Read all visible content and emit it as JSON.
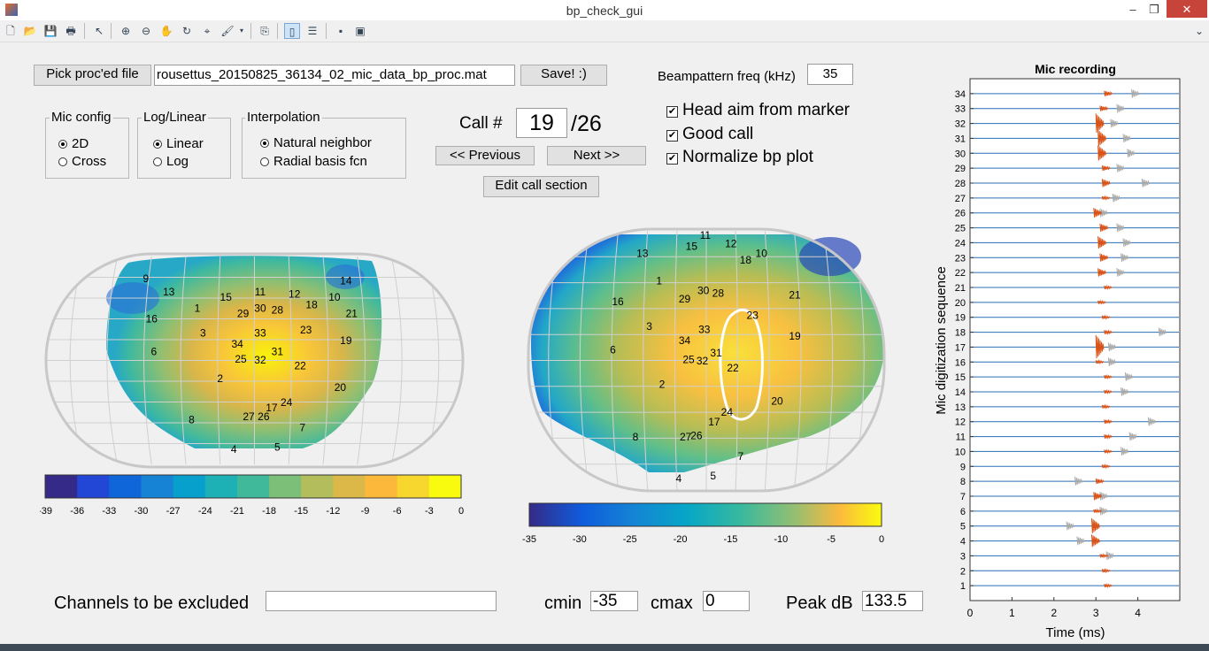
{
  "window": {
    "title": "bp_check_gui",
    "minimize": "–",
    "restore": "❐",
    "close": "✕"
  },
  "toolbar": {
    "icons": [
      "new-icon",
      "open-icon",
      "save-icon",
      "print-icon",
      "pointer-icon",
      "zoom-in-icon",
      "zoom-out-icon",
      "pan-icon",
      "rotate-icon",
      "data-cursor-icon",
      "brush-icon",
      "dropdown-icon",
      "link-plot-icon",
      "colorbar-icon",
      "legend-icon",
      "hide-plot-tools-icon",
      "show-plot-tools-icon"
    ],
    "overflow": "⌄"
  },
  "file": {
    "pick_label": "Pick proc'ed file",
    "filename": "rousettus_20150825_36134_02_mic_data_bp_proc.mat",
    "save_label": "Save!  :)"
  },
  "bp_freq": {
    "label": "Beampattern freq (kHz)",
    "value": "35"
  },
  "mic_config": {
    "title": "Mic config",
    "options": [
      "2D",
      "Cross"
    ],
    "selected": "2D"
  },
  "log_linear": {
    "title": "Log/Linear",
    "options": [
      "Linear",
      "Log"
    ],
    "selected": "Linear"
  },
  "interp": {
    "title": "Interpolation",
    "options": [
      "Natural neighbor",
      "Radial basis fcn"
    ],
    "selected": "Natural neighbor"
  },
  "call": {
    "label": "Call #",
    "value": "19",
    "total": "/26",
    "prev_label": "<< Previous",
    "next_label": "Next >>",
    "edit_label": "Edit call section"
  },
  "checks": [
    {
      "label": "Head aim from marker",
      "checked": true
    },
    {
      "label": "Good call",
      "checked": true
    },
    {
      "label": "Normalize bp plot",
      "checked": true
    }
  ],
  "left_map": {
    "mics": [
      {
        "id": "9",
        "lon": -95,
        "lat": 72
      },
      {
        "id": "13",
        "lon": -75,
        "lat": 60
      },
      {
        "id": "15",
        "lon": -25,
        "lat": 55
      },
      {
        "id": "11",
        "lon": 5,
        "lat": 60
      },
      {
        "id": "12",
        "lon": 35,
        "lat": 58
      },
      {
        "id": "14",
        "lon": 80,
        "lat": 70
      },
      {
        "id": "10",
        "lon": 70,
        "lat": 55
      },
      {
        "id": "18",
        "lon": 50,
        "lat": 48
      },
      {
        "id": "21",
        "lon": 85,
        "lat": 40
      },
      {
        "id": "16",
        "lon": -90,
        "lat": 35
      },
      {
        "id": "1",
        "lon": -50,
        "lat": 45
      },
      {
        "id": "29",
        "lon": -10,
        "lat": 40
      },
      {
        "id": "30",
        "lon": 5,
        "lat": 45
      },
      {
        "id": "28",
        "lon": 20,
        "lat": 43
      },
      {
        "id": "3",
        "lon": -45,
        "lat": 22
      },
      {
        "id": "33",
        "lon": 5,
        "lat": 22
      },
      {
        "id": "23",
        "lon": 45,
        "lat": 25
      },
      {
        "id": "19",
        "lon": 80,
        "lat": 15
      },
      {
        "id": "6",
        "lon": -88,
        "lat": 5
      },
      {
        "id": "34",
        "lon": -15,
        "lat": 12
      },
      {
        "id": "31",
        "lon": 20,
        "lat": 5
      },
      {
        "id": "25",
        "lon": -12,
        "lat": -2
      },
      {
        "id": "32",
        "lon": 5,
        "lat": -3
      },
      {
        "id": "22",
        "lon": 40,
        "lat": -8
      },
      {
        "id": "2",
        "lon": -30,
        "lat": -20
      },
      {
        "id": "20",
        "lon": 75,
        "lat": -28
      },
      {
        "id": "24",
        "lon": 28,
        "lat": -42
      },
      {
        "id": "17",
        "lon": 15,
        "lat": -47
      },
      {
        "id": "27",
        "lon": -5,
        "lat": -55
      },
      {
        "id": "26",
        "lon": 8,
        "lat": -55
      },
      {
        "id": "8",
        "lon": -55,
        "lat": -58
      },
      {
        "id": "7",
        "lon": 42,
        "lat": -65
      },
      {
        "id": "4",
        "lon": -18,
        "lat": -85
      },
      {
        "id": "5",
        "lon": 20,
        "lat": -83
      }
    ],
    "colorbar_ticks": [
      "-39",
      "-36",
      "-33",
      "-30",
      "-27",
      "-24",
      "-21",
      "-18",
      "-15",
      "-12",
      "-9",
      "-6",
      "-3",
      "0"
    ]
  },
  "right_map": {
    "mics": [
      {
        "id": "13",
        "lon": -65,
        "lat": 75
      },
      {
        "id": "15",
        "lon": -15,
        "lat": 80
      },
      {
        "id": "11",
        "lon": -1,
        "lat": 88
      },
      {
        "id": "12",
        "lon": 25,
        "lat": 82
      },
      {
        "id": "18",
        "lon": 40,
        "lat": 70
      },
      {
        "id": "10",
        "lon": 56,
        "lat": 75
      },
      {
        "id": "21",
        "lon": 90,
        "lat": 45
      },
      {
        "id": "16",
        "lon": -90,
        "lat": 40
      },
      {
        "id": "1",
        "lon": -48,
        "lat": 55
      },
      {
        "id": "29",
        "lon": -22,
        "lat": 42
      },
      {
        "id": "30",
        "lon": -3,
        "lat": 48
      },
      {
        "id": "28",
        "lon": 12,
        "lat": 46
      },
      {
        "id": "23",
        "lon": 47,
        "lat": 30
      },
      {
        "id": "3",
        "lon": -58,
        "lat": 22
      },
      {
        "id": "33",
        "lon": -2,
        "lat": 20
      },
      {
        "id": "34",
        "lon": -22,
        "lat": 12
      },
      {
        "id": "19",
        "lon": 90,
        "lat": 15
      },
      {
        "id": "6",
        "lon": -95,
        "lat": 5
      },
      {
        "id": "31",
        "lon": 10,
        "lat": 3
      },
      {
        "id": "25",
        "lon": -18,
        "lat": -2
      },
      {
        "id": "32",
        "lon": -4,
        "lat": -3
      },
      {
        "id": "22",
        "lon": 27,
        "lat": -8
      },
      {
        "id": "2",
        "lon": -45,
        "lat": -20
      },
      {
        "id": "20",
        "lon": 72,
        "lat": -32
      },
      {
        "id": "24",
        "lon": 21,
        "lat": -40
      },
      {
        "id": "17",
        "lon": 8,
        "lat": -47
      },
      {
        "id": "27",
        "lon": -21,
        "lat": -58
      },
      {
        "id": "26",
        "lon": -10,
        "lat": -57
      },
      {
        "id": "8",
        "lon": -72,
        "lat": -58
      },
      {
        "id": "7",
        "lon": 35,
        "lat": -72
      },
      {
        "id": "4",
        "lon": -28,
        "lat": -88
      },
      {
        "id": "5",
        "lon": 7,
        "lat": -86
      }
    ],
    "colorbar_ticks": [
      "-35",
      "-30",
      "-25",
      "-20",
      "-15",
      "-10",
      "-5",
      "0"
    ]
  },
  "footer": {
    "excluded_label": "Channels to be excluded",
    "excluded_value": "",
    "cmin_label": "cmin",
    "cmin_value": "-35",
    "cmax_label": "cmax",
    "cmax_value": "0",
    "peak_label": "Peak dB",
    "peak_value": "133.5"
  },
  "chart_data": {
    "type": "line",
    "title": "Mic recording",
    "xlabel": "Time (ms)",
    "ylabel": "Mic digitization sequence",
    "xlim": [
      0,
      5
    ],
    "xticks": [
      "0",
      "1",
      "2",
      "3",
      "4"
    ],
    "ylim": [
      0,
      35
    ],
    "yticks": [
      "1",
      "2",
      "3",
      "4",
      "5",
      "6",
      "7",
      "8",
      "9",
      "10",
      "11",
      "12",
      "13",
      "14",
      "15",
      "16",
      "17",
      "18",
      "19",
      "20",
      "21",
      "22",
      "23",
      "24",
      "25",
      "26",
      "27",
      "28",
      "29",
      "30",
      "31",
      "32",
      "33",
      "34"
    ],
    "series": [
      {
        "mic": 1,
        "call_t": 3.2,
        "call_amp": 0.05,
        "echo_t": null
      },
      {
        "mic": 2,
        "call_t": 3.15,
        "call_amp": 0.05,
        "echo_t": null
      },
      {
        "mic": 3,
        "call_t": 3.1,
        "call_amp": 0.1,
        "echo_t": 3.25
      },
      {
        "mic": 4,
        "call_t": 2.9,
        "call_amp": 0.45,
        "echo_t": 2.55
      },
      {
        "mic": 5,
        "call_t": 2.9,
        "call_amp": 0.55,
        "echo_t": 2.3
      },
      {
        "mic": 6,
        "call_t": 2.95,
        "call_amp": 0.1,
        "echo_t": 3.1
      },
      {
        "mic": 7,
        "call_t": 2.95,
        "call_amp": 0.3,
        "echo_t": 3.1
      },
      {
        "mic": 8,
        "call_t": 3.0,
        "call_amp": 0.2,
        "echo_t": 2.5
      },
      {
        "mic": 9,
        "call_t": 3.15,
        "call_amp": 0.05,
        "echo_t": null
      },
      {
        "mic": 10,
        "call_t": 3.2,
        "call_amp": 0.1,
        "echo_t": 3.6
      },
      {
        "mic": 11,
        "call_t": 3.2,
        "call_amp": 0.15,
        "echo_t": 3.8
      },
      {
        "mic": 12,
        "call_t": 3.2,
        "call_amp": 0.15,
        "echo_t": 4.25
      },
      {
        "mic": 13,
        "call_t": 3.15,
        "call_amp": 0.1,
        "echo_t": null
      },
      {
        "mic": 14,
        "call_t": 3.2,
        "call_amp": 0.1,
        "echo_t": 3.6
      },
      {
        "mic": 15,
        "call_t": 3.2,
        "call_amp": 0.1,
        "echo_t": 3.7
      },
      {
        "mic": 16,
        "call_t": 3.0,
        "call_amp": 0.1,
        "echo_t": 3.3
      },
      {
        "mic": 17,
        "call_t": 3.0,
        "call_amp": 0.85,
        "echo_t": 3.3
      },
      {
        "mic": 18,
        "call_t": 3.2,
        "call_amp": 0.15,
        "echo_t": 4.5
      },
      {
        "mic": 19,
        "call_t": 3.15,
        "call_amp": 0.1,
        "echo_t": null
      },
      {
        "mic": 20,
        "call_t": 3.05,
        "call_amp": 0.1,
        "echo_t": null
      },
      {
        "mic": 21,
        "call_t": 3.2,
        "call_amp": 0.1,
        "echo_t": null
      },
      {
        "mic": 22,
        "call_t": 3.05,
        "call_amp": 0.3,
        "echo_t": 3.5
      },
      {
        "mic": 23,
        "call_t": 3.1,
        "call_amp": 0.3,
        "echo_t": 3.6
      },
      {
        "mic": 24,
        "call_t": 3.05,
        "call_amp": 0.45,
        "echo_t": 3.65
      },
      {
        "mic": 25,
        "call_t": 3.1,
        "call_amp": 0.3,
        "echo_t": 3.5
      },
      {
        "mic": 26,
        "call_t": 2.95,
        "call_amp": 0.35,
        "echo_t": 3.1
      },
      {
        "mic": 27,
        "call_t": 3.15,
        "call_amp": 0.1,
        "echo_t": 3.4
      },
      {
        "mic": 28,
        "call_t": 3.15,
        "call_amp": 0.3,
        "echo_t": 4.1
      },
      {
        "mic": 29,
        "call_t": 3.15,
        "call_amp": 0.2,
        "echo_t": 3.5
      },
      {
        "mic": 30,
        "call_t": 3.05,
        "call_amp": 0.55,
        "echo_t": 3.75
      },
      {
        "mic": 31,
        "call_t": 3.05,
        "call_amp": 0.6,
        "echo_t": 3.65
      },
      {
        "mic": 32,
        "call_t": 3.0,
        "call_amp": 0.7,
        "echo_t": 3.35
      },
      {
        "mic": 33,
        "call_t": 3.1,
        "call_amp": 0.2,
        "echo_t": 3.5
      },
      {
        "mic": 34,
        "call_t": 3.2,
        "call_amp": 0.2,
        "echo_t": 3.85
      }
    ]
  }
}
